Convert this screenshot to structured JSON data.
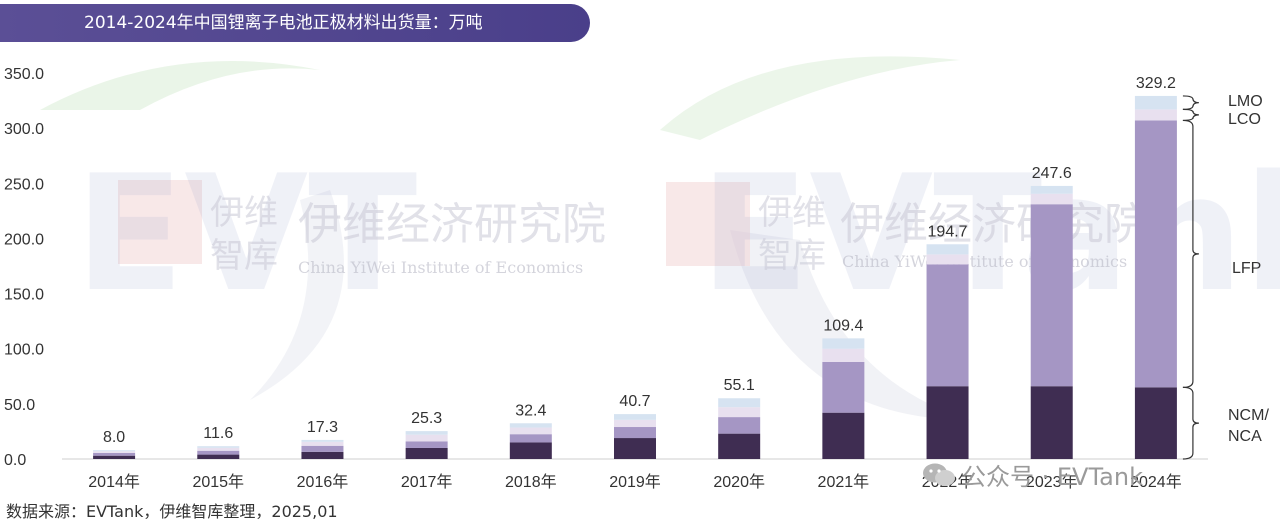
{
  "title": "2014-2024年中国锂离子电池正极材料出货量：万吨",
  "source": "数据来源：EVTank，伊维智库整理，2025,01",
  "watermark": {
    "brand_cn_short_1": "伊维",
    "brand_cn_short_2": "智库",
    "brand_cn_long": "伊维经济研究院",
    "brand_en": "China YiWei Institute of Economics",
    "wechat": "公众号 · EVTank"
  },
  "colors": {
    "NCM/NCA": "#3f2d52",
    "LFP": "#a596c4",
    "LCO": "#e8e0ef",
    "LMO": "#d6e3f1",
    "banner": "#4f4490"
  },
  "chart_data": {
    "type": "bar",
    "stacked": true,
    "categories": [
      "2014年",
      "2015年",
      "2016年",
      "2017年",
      "2018年",
      "2019年",
      "2020年",
      "2021年",
      "2022年",
      "2023年",
      "2024年"
    ],
    "series": [
      {
        "name": "NCM/\nNCA",
        "values": [
          3.0,
          4.0,
          6.5,
          10.0,
          15.0,
          19.0,
          23.0,
          42.0,
          66.0,
          66.0,
          65.0
        ]
      },
      {
        "name": "LFP",
        "values": [
          2.5,
          3.5,
          5.5,
          6.0,
          7.5,
          10.0,
          15.0,
          46.0,
          110.5,
          165.0,
          242.0
        ]
      },
      {
        "name": "LCO",
        "values": [
          1.5,
          2.6,
          3.5,
          6.0,
          6.0,
          6.5,
          9.0,
          12.0,
          9.0,
          9.5,
          10.0
        ]
      },
      {
        "name": "LMO",
        "values": [
          1.0,
          1.5,
          1.8,
          3.3,
          3.9,
          5.2,
          8.1,
          9.4,
          9.2,
          7.1,
          12.2
        ]
      }
    ],
    "totals": [
      "8.0",
      "11.6",
      "17.3",
      "25.3",
      "32.4",
      "40.7",
      "55.1",
      "109.4",
      "194.7",
      "247.6",
      "329.2"
    ],
    "yticks": [
      "0.0",
      "50.0",
      "100.0",
      "150.0",
      "200.0",
      "250.0",
      "300.0",
      "350.0"
    ],
    "ylim": [
      0,
      350
    ],
    "legend_labels": [
      "LMO",
      "LCO",
      "LFP",
      "NCM/\nNCA"
    ],
    "grid": false
  }
}
